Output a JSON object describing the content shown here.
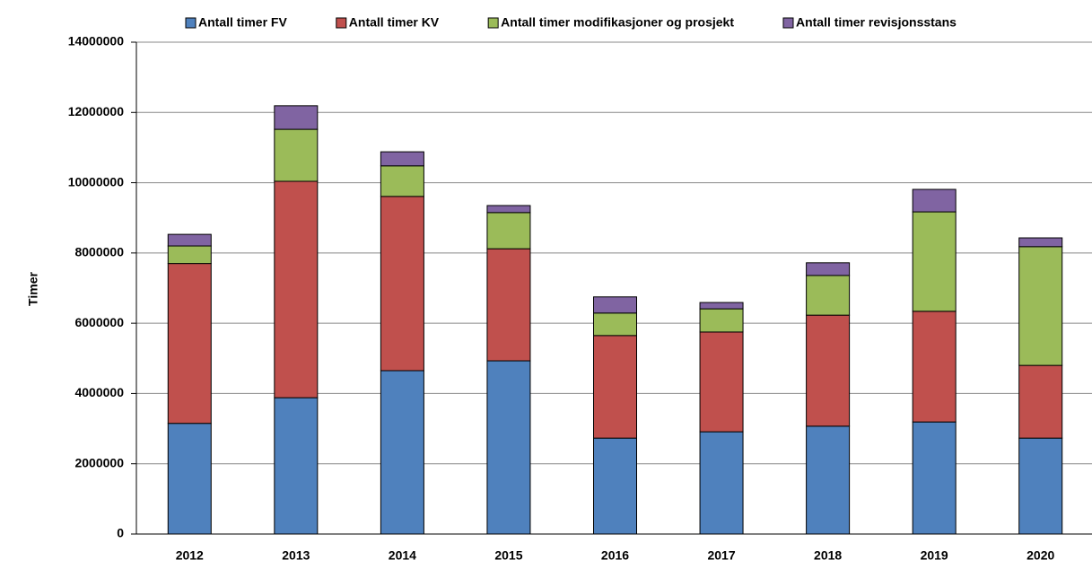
{
  "chart_data": {
    "type": "stacked_bar",
    "y_label": "Timer",
    "categories": [
      "2012",
      "2013",
      "2014",
      "2015",
      "2016",
      "2017",
      "2018",
      "2019",
      "2020"
    ],
    "series": [
      {
        "name": "Antall timer FV",
        "color": "#4f81bd",
        "values": [
          3150000,
          3880000,
          4650000,
          4930000,
          2730000,
          2910000,
          3070000,
          3190000,
          2730000
        ]
      },
      {
        "name": "Antall timer KV",
        "color": "#c0504d",
        "values": [
          4550000,
          6160000,
          4960000,
          3190000,
          2920000,
          2840000,
          3160000,
          3150000,
          2070000
        ]
      },
      {
        "name": "Antall timer modifikasjoner og prosjekt",
        "color": "#9bbb59",
        "values": [
          500000,
          1480000,
          870000,
          1030000,
          640000,
          660000,
          1130000,
          2830000,
          3380000
        ]
      },
      {
        "name": "Antall timer revisjonsstans",
        "color": "#8064a2",
        "values": [
          330000,
          670000,
          400000,
          200000,
          460000,
          180000,
          360000,
          640000,
          250000
        ]
      }
    ],
    "ylim": [
      0,
      14000000
    ],
    "yticks": [
      0,
      2000000,
      4000000,
      6000000,
      8000000,
      10000000,
      12000000,
      14000000
    ],
    "grid": true,
    "legend": "top"
  }
}
